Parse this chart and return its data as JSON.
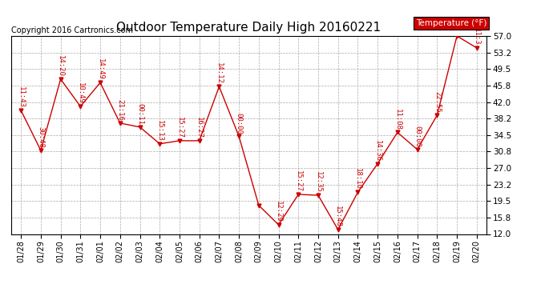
{
  "title": "Outdoor Temperature Daily High 20160221",
  "copyright": "Copyright 2016 Cartronics.com",
  "legend_label": "Temperature (°F)",
  "dates": [
    "01/28",
    "01/29",
    "01/30",
    "01/31",
    "02/01",
    "02/02",
    "02/03",
    "02/04",
    "02/05",
    "02/06",
    "02/07",
    "02/08",
    "02/09",
    "02/10",
    "02/11",
    "02/12",
    "02/13",
    "02/14",
    "02/15",
    "02/16",
    "02/17",
    "02/18",
    "02/19",
    "02/20"
  ],
  "temps": [
    40.1,
    31.0,
    47.2,
    41.0,
    46.4,
    37.2,
    36.3,
    32.5,
    33.2,
    33.2,
    45.5,
    34.2,
    18.5,
    14.1,
    21.0,
    20.8,
    13.0,
    21.5,
    28.0,
    35.1,
    31.2,
    39.0,
    57.0,
    54.3
  ],
  "time_labels": [
    "11:43",
    "30:48",
    "14:20",
    "10:49",
    "14:49",
    "21:16",
    "00:11",
    "15:13",
    "15:27",
    "16:27",
    "14:12",
    "00:00",
    "",
    "12:29",
    "15:27",
    "12:35",
    "15:48",
    "18:10",
    "14:36",
    "11:08",
    "00:00",
    "22:55",
    "",
    "11:3"
  ],
  "line_color": "#cc0000",
  "marker_color": "#cc0000",
  "bg_color": "#ffffff",
  "grid_color": "#aaaaaa",
  "title_fontsize": 11,
  "copyright_fontsize": 7,
  "label_fontsize": 6.5,
  "legend_bg": "#cc0000",
  "legend_fg": "#ffffff",
  "ylim_min": 12.0,
  "ylim_max": 57.0,
  "yticks": [
    12.0,
    15.8,
    19.5,
    23.2,
    27.0,
    30.8,
    34.5,
    38.2,
    42.0,
    45.8,
    49.5,
    53.2,
    57.0
  ]
}
